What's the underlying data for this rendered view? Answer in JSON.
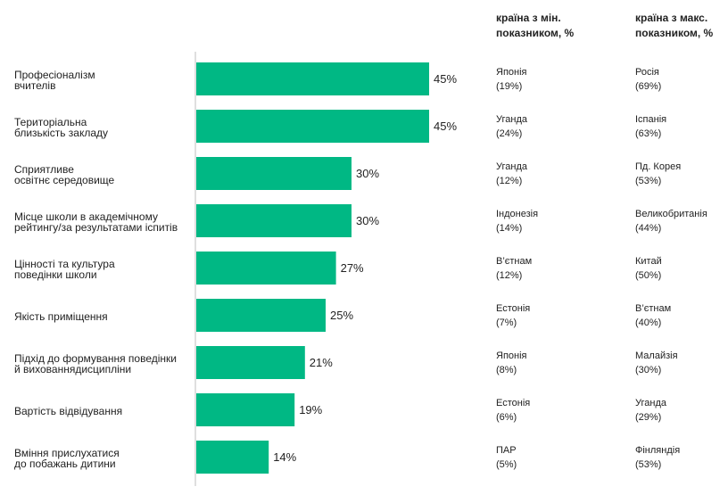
{
  "headers": {
    "min": [
      "країна з мін.",
      "показником, %"
    ],
    "max": [
      "країна з макс.",
      "показником, %"
    ]
  },
  "chart_data": {
    "type": "bar",
    "orientation": "horizontal",
    "bar_color": "#00b884",
    "axis_color": "#bfbfbf",
    "value_suffix": "%",
    "xlim": [
      0,
      60
    ],
    "categories": [
      [
        "Професіоналізм",
        "вчителів"
      ],
      [
        "Територіальна",
        "близькість закладу"
      ],
      [
        "Сприятливе",
        "освітнє середовище"
      ],
      [
        "Місце школи в академічному",
        "рейтингу/за результатами іспитів"
      ],
      [
        "Цінності та культура",
        "поведінки школи"
      ],
      [
        "Якість приміщення"
      ],
      [
        "Підхід до формування поведінки",
        "й вихованнядисципліни"
      ],
      [
        "Вартість відвідування"
      ],
      [
        "Вміння прислухатися",
        "до побажань дитини"
      ]
    ],
    "values": [
      45,
      45,
      30,
      30,
      27,
      25,
      21,
      19,
      14
    ],
    "min_country": [
      {
        "name": "Японія",
        "value": "(19%)"
      },
      {
        "name": "Уганда",
        "value": "(24%)"
      },
      {
        "name": "Уганда",
        "value": "(12%)"
      },
      {
        "name": "Індонезія",
        "value": "(14%)"
      },
      {
        "name": "В’єтнам",
        "value": "(12%)"
      },
      {
        "name": "Естонія",
        "value": "(7%)"
      },
      {
        "name": "Японія",
        "value": "(8%)"
      },
      {
        "name": "Естонія",
        "value": "(6%)"
      },
      {
        "name": "ПАР",
        "value": "(5%)"
      }
    ],
    "max_country": [
      {
        "name": "Росія",
        "value": "(69%)"
      },
      {
        "name": "Іспанія",
        "value": "(63%)"
      },
      {
        "name": "Пд. Корея",
        "value": "(53%)"
      },
      {
        "name": "Великобританія",
        "value": "(44%)"
      },
      {
        "name": "Китай",
        "value": "(50%)"
      },
      {
        "name": "В’єтнам",
        "value": "(40%)"
      },
      {
        "name": "Малайзія",
        "value": "(30%)"
      },
      {
        "name": "Уганда",
        "value": "(29%)"
      },
      {
        "name": "Фінляндія",
        "value": "(53%)"
      }
    ]
  }
}
